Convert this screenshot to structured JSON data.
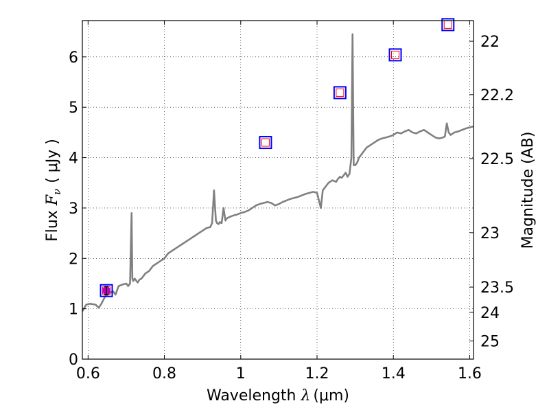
{
  "chart_data": {
    "type": "line",
    "title": "",
    "xlabel": "Wavelength  λ (μm)",
    "xlabel_prefix": "Wavelength  ",
    "xlabel_lambda": "λ",
    "xlabel_unit": "(μm)",
    "ylabel": "Flux  Fν  ( μJy )",
    "ylabel_prefix": "Flux  ",
    "ylabel_symbol": "F",
    "ylabel_subscript": "ν",
    "ylabel_unit": "( μJy )",
    "y2label": "Magnitude (AB)",
    "xlim": [
      0.585,
      1.61
    ],
    "ylim": [
      0,
      6.72
    ],
    "grid": true,
    "grid_style": "dotted",
    "x_ticks": [
      0.6,
      0.8,
      1.0,
      1.2,
      1.4,
      1.6
    ],
    "x_tick_labels": [
      "0.6",
      "0.8",
      "1",
      "1.2",
      "1.4",
      "1.6"
    ],
    "y_ticks": [
      0,
      1,
      2,
      3,
      4,
      5,
      6
    ],
    "y_tick_labels": [
      "0",
      "1",
      "2",
      "3",
      "4",
      "5",
      "6"
    ],
    "y2_ticks": [
      {
        "label": "22",
        "flux": 6.31
      },
      {
        "label": "22.2",
        "flux": 5.25
      },
      {
        "label": "22.5",
        "flux": 3.98
      },
      {
        "label": "23",
        "flux": 2.51
      },
      {
        "label": "23.5",
        "flux": 1.43
      },
      {
        "label": "24",
        "flux": 0.93
      },
      {
        "label": "25",
        "flux": 0.36
      }
    ],
    "colors": {
      "spectrum": "#808080",
      "outer_box": "#0000ff",
      "inner_box": "#ff0000",
      "measured_point": "#bf00bf",
      "grid": "#000000"
    },
    "series": [
      {
        "type": "line",
        "x": [
          0.585,
          0.595,
          0.605,
          0.62,
          0.628,
          0.635,
          0.645,
          0.655,
          0.665,
          0.672,
          0.68,
          0.69,
          0.7,
          0.705,
          0.71,
          0.714,
          0.716,
          0.718,
          0.722,
          0.73,
          0.735,
          0.74,
          0.75,
          0.76,
          0.77,
          0.78,
          0.79,
          0.8,
          0.81,
          0.82,
          0.83,
          0.84,
          0.85,
          0.86,
          0.87,
          0.88,
          0.89,
          0.9,
          0.91,
          0.92,
          0.925,
          0.93,
          0.935,
          0.938,
          0.942,
          0.945,
          0.95,
          0.955,
          0.96,
          0.962,
          0.965,
          0.97,
          0.98,
          0.99,
          1.0,
          1.01,
          1.02,
          1.03,
          1.04,
          1.05,
          1.06,
          1.07,
          1.08,
          1.09,
          1.1,
          1.11,
          1.12,
          1.13,
          1.14,
          1.15,
          1.16,
          1.17,
          1.18,
          1.19,
          1.2,
          1.21,
          1.215,
          1.22,
          1.225,
          1.23,
          1.24,
          1.25,
          1.255,
          1.26,
          1.265,
          1.27,
          1.275,
          1.28,
          1.285,
          1.29,
          1.293,
          1.296,
          1.298,
          1.3,
          1.305,
          1.31,
          1.32,
          1.33,
          1.34,
          1.35,
          1.36,
          1.37,
          1.38,
          1.39,
          1.4,
          1.41,
          1.42,
          1.43,
          1.44,
          1.45,
          1.46,
          1.47,
          1.48,
          1.49,
          1.5,
          1.51,
          1.52,
          1.53,
          1.535,
          1.54,
          1.545,
          1.55,
          1.56,
          1.57,
          1.58,
          1.59,
          1.6,
          1.61
        ],
        "y": [
          0.95,
          1.08,
          1.1,
          1.08,
          1.02,
          1.1,
          1.25,
          1.3,
          1.35,
          1.28,
          1.45,
          1.48,
          1.5,
          1.45,
          1.5,
          2.9,
          1.6,
          1.55,
          1.6,
          1.52,
          1.58,
          1.6,
          1.7,
          1.75,
          1.85,
          1.9,
          1.95,
          2.0,
          2.1,
          2.15,
          2.2,
          2.25,
          2.3,
          2.35,
          2.4,
          2.45,
          2.5,
          2.55,
          2.6,
          2.62,
          2.7,
          3.35,
          2.75,
          2.7,
          2.68,
          2.72,
          2.7,
          3.0,
          2.75,
          2.78,
          2.8,
          2.82,
          2.85,
          2.87,
          2.9,
          2.92,
          2.95,
          3.0,
          3.05,
          3.08,
          3.1,
          3.12,
          3.1,
          3.05,
          3.08,
          3.12,
          3.15,
          3.18,
          3.2,
          3.22,
          3.25,
          3.28,
          3.3,
          3.32,
          3.3,
          3.0,
          3.35,
          3.4,
          3.45,
          3.5,
          3.55,
          3.52,
          3.58,
          3.62,
          3.6,
          3.65,
          3.7,
          3.62,
          3.68,
          4.0,
          6.45,
          3.85,
          3.85,
          3.85,
          3.9,
          4.0,
          4.1,
          4.2,
          4.25,
          4.3,
          4.35,
          4.38,
          4.4,
          4.42,
          4.45,
          4.5,
          4.48,
          4.52,
          4.55,
          4.5,
          4.48,
          4.52,
          4.55,
          4.5,
          4.45,
          4.4,
          4.38,
          4.4,
          4.42,
          4.68,
          4.5,
          4.45,
          4.5,
          4.52,
          4.55,
          4.58,
          4.6,
          4.62
        ]
      },
      {
        "type": "photometry_boxes",
        "x": [
          0.648,
          1.065,
          1.26,
          1.405,
          1.543
        ],
        "y": [
          1.36,
          4.3,
          5.29,
          6.04,
          6.64
        ]
      },
      {
        "type": "measured_point",
        "x": [
          0.648
        ],
        "y": [
          1.36
        ],
        "yerr": [
          0.08
        ]
      }
    ]
  }
}
